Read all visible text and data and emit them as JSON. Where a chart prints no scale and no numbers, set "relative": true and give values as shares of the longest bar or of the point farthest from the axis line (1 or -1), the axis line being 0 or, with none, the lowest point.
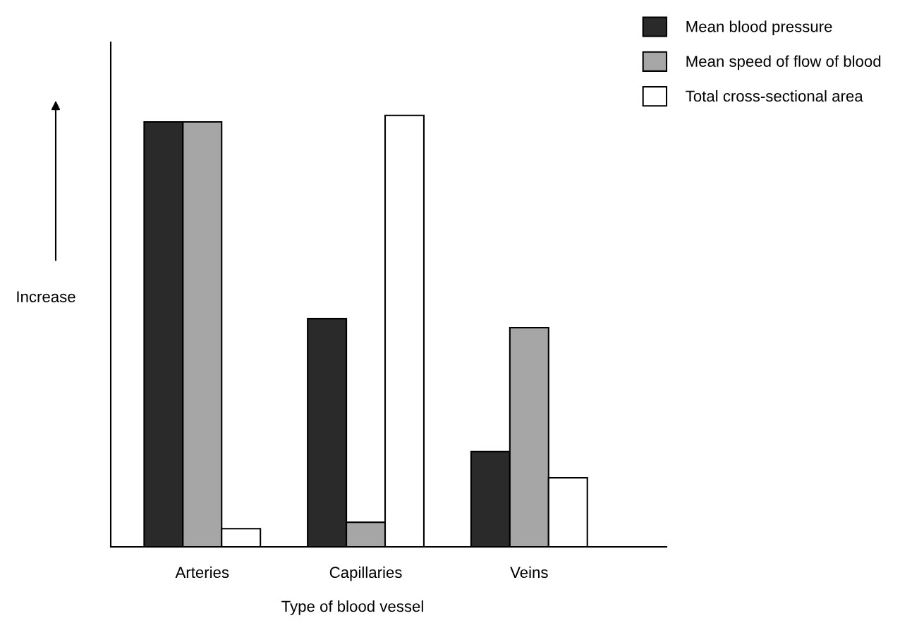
{
  "chart_data": {
    "type": "bar",
    "relative": true,
    "xlabel": "Type of blood vessel",
    "ylabel": "Increase",
    "categories": [
      "Arteries",
      "Capillaries",
      "Veins"
    ],
    "series": [
      {
        "name": "Mean blood pressure",
        "color": "#2a2a2a",
        "values": [
          0.985,
          0.529,
          0.221
        ]
      },
      {
        "name": "Mean speed of flow of blood",
        "color": "#a6a6a6",
        "values": [
          0.985,
          0.057,
          0.508
        ]
      },
      {
        "name": "Total cross-sectional area",
        "color": "#ffffff",
        "values": [
          0.042,
          1,
          0.16
        ]
      }
    ],
    "legend": "top right",
    "grid": false
  }
}
